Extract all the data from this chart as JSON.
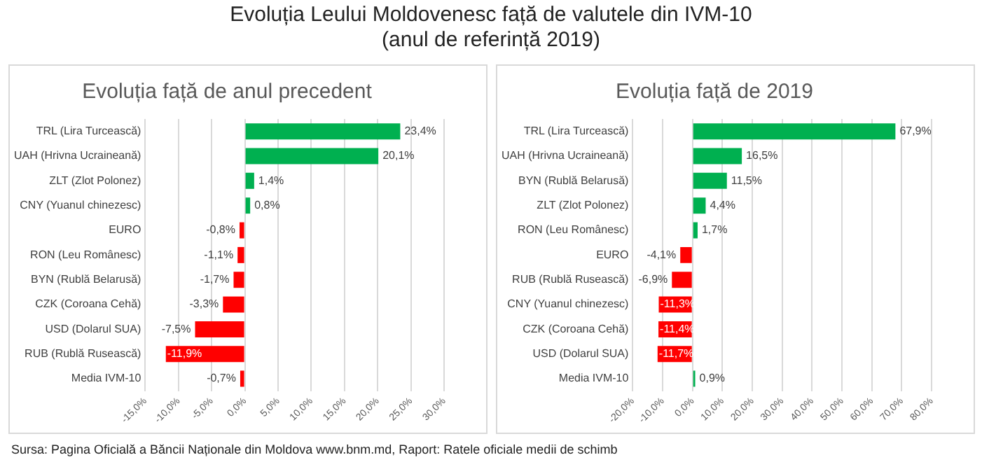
{
  "chart_data": [
    {
      "type": "bar",
      "orientation": "horizontal",
      "title": "Evoluția față de anul precedent",
      "annotations": [
        "Evoluția Leului Moldovenesc față de valutele din IVM-10\n(anul de referință 2019)"
      ],
      "categories": [
        "TRL (Lira Turcească)",
        "UAH (Hrivna Ucraineană)",
        "ZLT (Zlot Polonez)",
        "CNY (Yuanul chinezesc)",
        "EURO",
        "RON (Leu Românesc)",
        "BYN (Rublă Belarusă)",
        "CZK (Coroana Cehă)",
        "USD (Dolarul SUA)",
        "RUB (Rublă Rusească)",
        "Media IVM-10"
      ],
      "values": [
        23.4,
        20.1,
        1.4,
        0.8,
        -0.8,
        -1.1,
        -1.7,
        -3.3,
        -7.5,
        -11.9,
        -0.7
      ],
      "value_labels": [
        "23,4%",
        "20,1%",
        "1,4%",
        "0,8%",
        "-0,8%",
        "-1,1%",
        "-1,7%",
        "-3,3%",
        "-7,5%",
        "-11,9%",
        "-0,7%"
      ],
      "colors": [
        "#00b050",
        "#00b050",
        "#00b050",
        "#00b050",
        "#ff0000",
        "#ff0000",
        "#ff0000",
        "#ff0000",
        "#ff0000",
        "#ff0000",
        "#ff0000"
      ],
      "xlim": [
        -15,
        30
      ],
      "xticks": [
        {
          "value": -15,
          "label": "-15,0%"
        },
        {
          "value": -10,
          "label": "-10,0%"
        },
        {
          "value": -5,
          "label": "-5,0%"
        },
        {
          "value": 0,
          "label": "0,0%"
        },
        {
          "value": 5,
          "label": "5,0%"
        },
        {
          "value": 10,
          "label": "10,0%"
        },
        {
          "value": 15,
          "label": "15,0%"
        },
        {
          "value": 20,
          "label": "20,0%"
        },
        {
          "value": 25,
          "label": "25,0%"
        },
        {
          "value": 30,
          "label": "30,0%"
        }
      ],
      "grid": "x"
    },
    {
      "type": "bar",
      "orientation": "horizontal",
      "title": "Evoluția față de 2019",
      "annotations": [
        "Sursa: Pagina Oficială a Băncii Naționale din Moldova www.bnm.md, Raport: Ratele oficiale medii de schimb"
      ],
      "categories": [
        "TRL (Lira Turcească)",
        "UAH (Hrivna Ucraineană)",
        "BYN (Rublă Belarusă)",
        "ZLT (Zlot Polonez)",
        "RON (Leu Românesc)",
        "EURO",
        "RUB (Rublă Rusească)",
        "CNY (Yuanul chinezesc)",
        "CZK (Coroana Cehă)",
        "USD (Dolarul SUA)",
        "Media IVM-10"
      ],
      "values": [
        67.9,
        16.5,
        11.5,
        4.4,
        1.7,
        -4.1,
        -6.9,
        -11.3,
        -11.4,
        -11.7,
        0.9
      ],
      "value_labels": [
        "67,9%",
        "16,5%",
        "11,5%",
        "4,4%",
        "1,7%",
        "-4,1%",
        "-6,9%",
        "-11,3%",
        "-11,4%",
        "-11,7%",
        "0,9%"
      ],
      "colors": [
        "#00b050",
        "#00b050",
        "#00b050",
        "#00b050",
        "#00b050",
        "#ff0000",
        "#ff0000",
        "#ff0000",
        "#ff0000",
        "#ff0000",
        "#00b050"
      ],
      "xlim": [
        -20,
        80
      ],
      "xticks": [
        {
          "value": -20,
          "label": "-20,0%"
        },
        {
          "value": -10,
          "label": "-10,0%"
        },
        {
          "value": 0,
          "label": "0,0%"
        },
        {
          "value": 10,
          "label": "10,0%"
        },
        {
          "value": 20,
          "label": "20,0%"
        },
        {
          "value": 30,
          "label": "30,0%"
        },
        {
          "value": 40,
          "label": "40,0%"
        },
        {
          "value": 50,
          "label": "50,0%"
        },
        {
          "value": 60,
          "label": "60,0%"
        },
        {
          "value": 70,
          "label": "70,0%"
        },
        {
          "value": 80,
          "label": "80,0%"
        }
      ],
      "grid": "x"
    }
  ]
}
